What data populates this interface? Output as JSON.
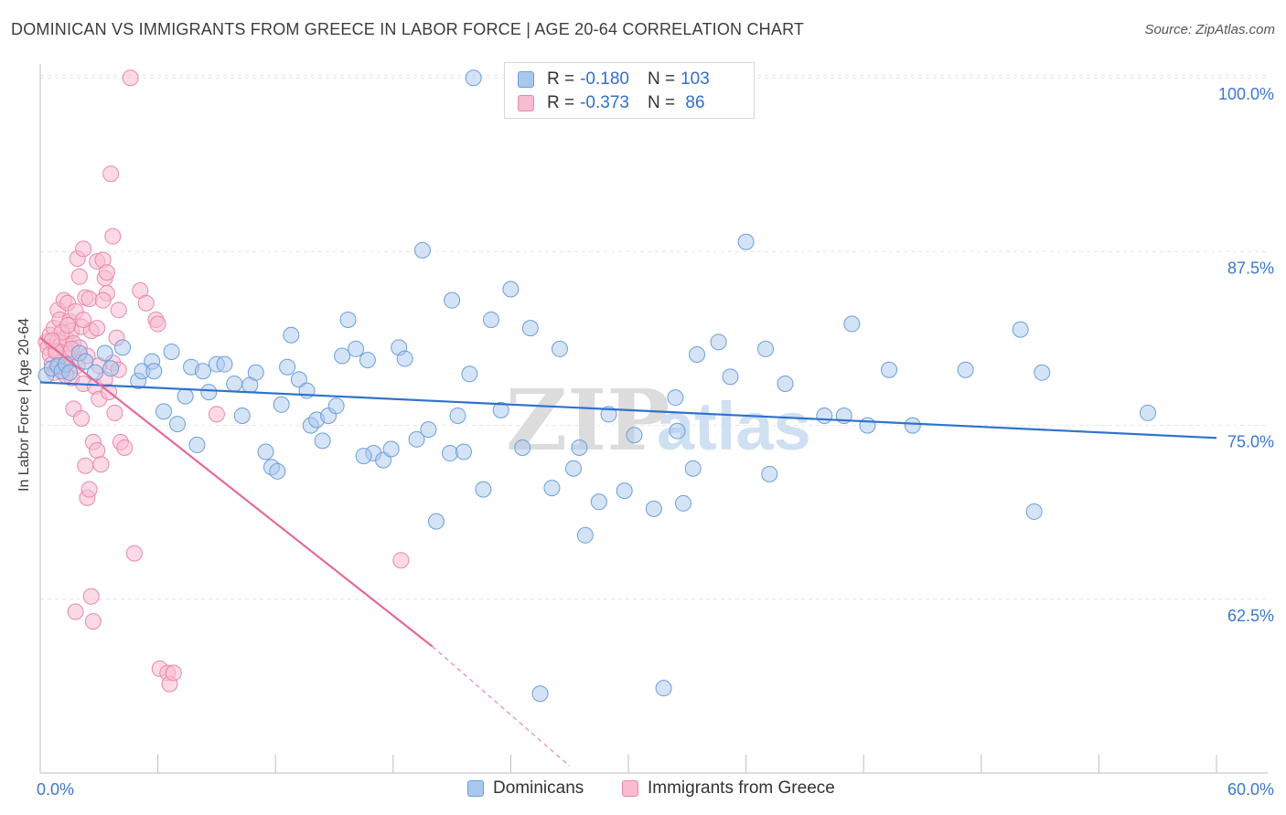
{
  "title": "DOMINICAN VS IMMIGRANTS FROM GREECE IN LABOR FORCE | AGE 20-64 CORRELATION CHART",
  "source": "Source: ZipAtlas.com",
  "watermark": {
    "part1": "ZIP",
    "part2": "atlas"
  },
  "colors": {
    "blue_fill": "#aac8ee",
    "blue_stroke": "#6c9fd8",
    "blue_line": "#2f72cc",
    "pink_fill": "#f7bccf",
    "pink_stroke": "#ea87a8",
    "pink_line": "#e46a95",
    "axis_label": "#3a78d0",
    "grid": "#e4e4e4"
  },
  "legend": {
    "rows": [
      {
        "r_label": "R = ",
        "r_value": "-0.180",
        "n_label": "N = ",
        "n_value": "103"
      },
      {
        "r_label": "R = ",
        "r_value": "-0.373",
        "n_label": "N = ",
        "n_value": " 86"
      }
    ],
    "bottom": [
      "Dominicans",
      "Immigrants from Greece"
    ]
  },
  "chart_data": {
    "type": "scatter",
    "title": "DOMINICAN VS IMMIGRANTS FROM GREECE IN LABOR FORCE | AGE 20-64 CORRELATION CHART",
    "xlabel": "",
    "ylabel": "In Labor Force | Age 20-64",
    "xlim": [
      0,
      60
    ],
    "ylim": [
      50,
      101
    ],
    "x_tick_labels": [
      {
        "value": 0,
        "label": "0.0%"
      },
      {
        "value": 60,
        "label": "60.0%"
      }
    ],
    "y_tick_labels": [
      {
        "value": 100,
        "label": "100.0%"
      },
      {
        "value": 87.5,
        "label": "87.5%"
      },
      {
        "value": 75,
        "label": "75.0%"
      },
      {
        "value": 62.5,
        "label": "62.5%"
      }
    ],
    "x_minor_ticks": [
      6,
      12,
      18,
      24,
      30,
      36,
      42,
      48,
      54,
      60
    ],
    "grid": true,
    "series": [
      {
        "name": "Dominicans",
        "r": -0.18,
        "n": 103,
        "trend": {
          "x0": 0,
          "y0": 78.1,
          "x1": 60,
          "y1": 74.1
        },
        "points": [
          [
            0.3,
            78.6
          ],
          [
            0.6,
            79.1
          ],
          [
            0.9,
            79.3
          ],
          [
            1.1,
            78.9
          ],
          [
            1.3,
            79.4
          ],
          [
            1.5,
            78.8
          ],
          [
            2.0,
            80.2
          ],
          [
            2.3,
            79.6
          ],
          [
            2.8,
            78.8
          ],
          [
            3.3,
            80.2
          ],
          [
            3.6,
            79.1
          ],
          [
            4.2,
            80.6
          ],
          [
            5.0,
            78.2
          ],
          [
            5.2,
            78.9
          ],
          [
            5.7,
            79.6
          ],
          [
            5.8,
            78.9
          ],
          [
            6.3,
            76.0
          ],
          [
            6.7,
            80.3
          ],
          [
            7.0,
            75.1
          ],
          [
            7.4,
            77.1
          ],
          [
            7.7,
            79.2
          ],
          [
            8.0,
            73.6
          ],
          [
            8.3,
            78.9
          ],
          [
            8.6,
            77.4
          ],
          [
            9.0,
            79.4
          ],
          [
            9.4,
            79.4
          ],
          [
            9.9,
            78.0
          ],
          [
            10.3,
            75.7
          ],
          [
            10.7,
            77.9
          ],
          [
            11.0,
            78.8
          ],
          [
            11.5,
            73.1
          ],
          [
            11.8,
            72.0
          ],
          [
            12.1,
            71.7
          ],
          [
            12.6,
            79.2
          ],
          [
            12.8,
            81.5
          ],
          [
            13.2,
            78.3
          ],
          [
            13.6,
            77.5
          ],
          [
            13.8,
            75.0
          ],
          [
            14.1,
            75.4
          ],
          [
            14.4,
            73.9
          ],
          [
            14.7,
            75.7
          ],
          [
            15.1,
            76.4
          ],
          [
            15.4,
            80.0
          ],
          [
            15.7,
            82.6
          ],
          [
            16.1,
            80.5
          ],
          [
            16.7,
            79.7
          ],
          [
            17.0,
            73.0
          ],
          [
            17.5,
            72.5
          ],
          [
            17.9,
            73.3
          ],
          [
            18.3,
            80.6
          ],
          [
            18.6,
            79.8
          ],
          [
            19.2,
            74.0
          ],
          [
            19.5,
            87.6
          ],
          [
            19.8,
            74.7
          ],
          [
            20.2,
            68.1
          ],
          [
            20.9,
            73.0
          ],
          [
            21.3,
            75.7
          ],
          [
            21.6,
            73.1
          ],
          [
            21.9,
            78.7
          ],
          [
            22.1,
            100.0
          ],
          [
            22.6,
            70.4
          ],
          [
            23.0,
            82.6
          ],
          [
            23.5,
            76.1
          ],
          [
            24.0,
            84.8
          ],
          [
            24.6,
            73.4
          ],
          [
            25.0,
            82.0
          ],
          [
            25.5,
            55.7
          ],
          [
            26.1,
            70.5
          ],
          [
            27.2,
            71.9
          ],
          [
            27.5,
            73.4
          ],
          [
            27.8,
            67.1
          ],
          [
            28.5,
            69.5
          ],
          [
            29.0,
            75.8
          ],
          [
            29.8,
            70.3
          ],
          [
            30.3,
            74.3
          ],
          [
            31.3,
            69.0
          ],
          [
            31.8,
            56.1
          ],
          [
            32.4,
            77.0
          ],
          [
            32.5,
            74.6
          ],
          [
            32.8,
            69.4
          ],
          [
            33.3,
            71.9
          ],
          [
            34.6,
            81.0
          ],
          [
            35.2,
            78.5
          ],
          [
            36.0,
            88.2
          ],
          [
            37.0,
            80.5
          ],
          [
            37.2,
            71.5
          ],
          [
            38.0,
            78.0
          ],
          [
            40.0,
            75.7
          ],
          [
            41.0,
            75.7
          ],
          [
            41.4,
            82.3
          ],
          [
            42.2,
            75.0
          ],
          [
            43.3,
            79.0
          ],
          [
            44.5,
            75.0
          ],
          [
            47.2,
            79.0
          ],
          [
            50.0,
            81.9
          ],
          [
            50.7,
            68.8
          ],
          [
            51.1,
            78.8
          ],
          [
            56.5,
            75.9
          ],
          [
            16.5,
            72.8
          ],
          [
            21.0,
            84.0
          ],
          [
            33.5,
            80.1
          ],
          [
            12.3,
            76.5
          ],
          [
            26.5,
            80.5
          ]
        ]
      },
      {
        "name": "Immigrants from Greece",
        "r": -0.373,
        "n": 86,
        "trend": {
          "x0": 0,
          "y0": 81.3,
          "x1": 20,
          "y1": 59.1,
          "dashed_to_x": 27,
          "dashed_to_y": 50.5
        },
        "points": [
          [
            0.3,
            81.0
          ],
          [
            0.4,
            80.6
          ],
          [
            0.5,
            81.5
          ],
          [
            0.5,
            80.1
          ],
          [
            0.6,
            79.4
          ],
          [
            0.7,
            82.0
          ],
          [
            0.7,
            78.8
          ],
          [
            0.8,
            80.4
          ],
          [
            0.9,
            81.1
          ],
          [
            0.9,
            83.3
          ],
          [
            1.0,
            79.5
          ],
          [
            1.0,
            82.6
          ],
          [
            1.1,
            80.9
          ],
          [
            1.2,
            84.0
          ],
          [
            1.2,
            79.1
          ],
          [
            1.3,
            81.3
          ],
          [
            1.4,
            79.8
          ],
          [
            1.4,
            83.8
          ],
          [
            1.5,
            80.2
          ],
          [
            1.5,
            82.5
          ],
          [
            1.6,
            81.8
          ],
          [
            1.6,
            78.4
          ],
          [
            1.7,
            80.9
          ],
          [
            1.7,
            76.2
          ],
          [
            1.8,
            83.2
          ],
          [
            1.9,
            79.3
          ],
          [
            1.9,
            87.0
          ],
          [
            2.0,
            80.6
          ],
          [
            2.0,
            85.7
          ],
          [
            2.1,
            82.1
          ],
          [
            2.1,
            75.5
          ],
          [
            2.2,
            87.7
          ],
          [
            2.2,
            78.0
          ],
          [
            2.3,
            84.2
          ],
          [
            2.3,
            72.1
          ],
          [
            2.4,
            80.0
          ],
          [
            2.4,
            69.8
          ],
          [
            2.5,
            84.1
          ],
          [
            2.5,
            70.4
          ],
          [
            2.6,
            81.8
          ],
          [
            2.6,
            62.7
          ],
          [
            2.7,
            60.9
          ],
          [
            2.7,
            73.8
          ],
          [
            2.8,
            77.8
          ],
          [
            2.9,
            86.8
          ],
          [
            2.9,
            73.2
          ],
          [
            3.0,
            79.3
          ],
          [
            3.0,
            76.9
          ],
          [
            3.1,
            72.2
          ],
          [
            3.2,
            86.9
          ],
          [
            3.3,
            85.6
          ],
          [
            3.3,
            78.3
          ],
          [
            3.4,
            86.0
          ],
          [
            3.4,
            84.5
          ],
          [
            3.5,
            77.4
          ],
          [
            3.6,
            93.1
          ],
          [
            3.7,
            88.6
          ],
          [
            3.7,
            79.5
          ],
          [
            3.8,
            75.9
          ],
          [
            3.9,
            81.3
          ],
          [
            4.0,
            83.3
          ],
          [
            4.1,
            73.8
          ],
          [
            4.3,
            73.4
          ],
          [
            4.6,
            100.0
          ],
          [
            4.8,
            65.8
          ],
          [
            5.1,
            84.7
          ],
          [
            5.4,
            83.8
          ],
          [
            5.9,
            82.6
          ],
          [
            6.0,
            82.3
          ],
          [
            6.1,
            57.5
          ],
          [
            6.5,
            57.2
          ],
          [
            6.6,
            56.4
          ],
          [
            6.8,
            57.2
          ],
          [
            9.0,
            75.8
          ],
          [
            18.4,
            65.3
          ],
          [
            1.8,
            61.6
          ],
          [
            0.8,
            80.3
          ],
          [
            1.1,
            81.7
          ],
          [
            1.3,
            78.6
          ],
          [
            1.6,
            80.5
          ],
          [
            2.2,
            82.6
          ],
          [
            0.6,
            81.1
          ],
          [
            1.4,
            82.2
          ],
          [
            2.9,
            82.0
          ],
          [
            3.2,
            84.0
          ],
          [
            4.0,
            79.0
          ]
        ]
      }
    ]
  }
}
